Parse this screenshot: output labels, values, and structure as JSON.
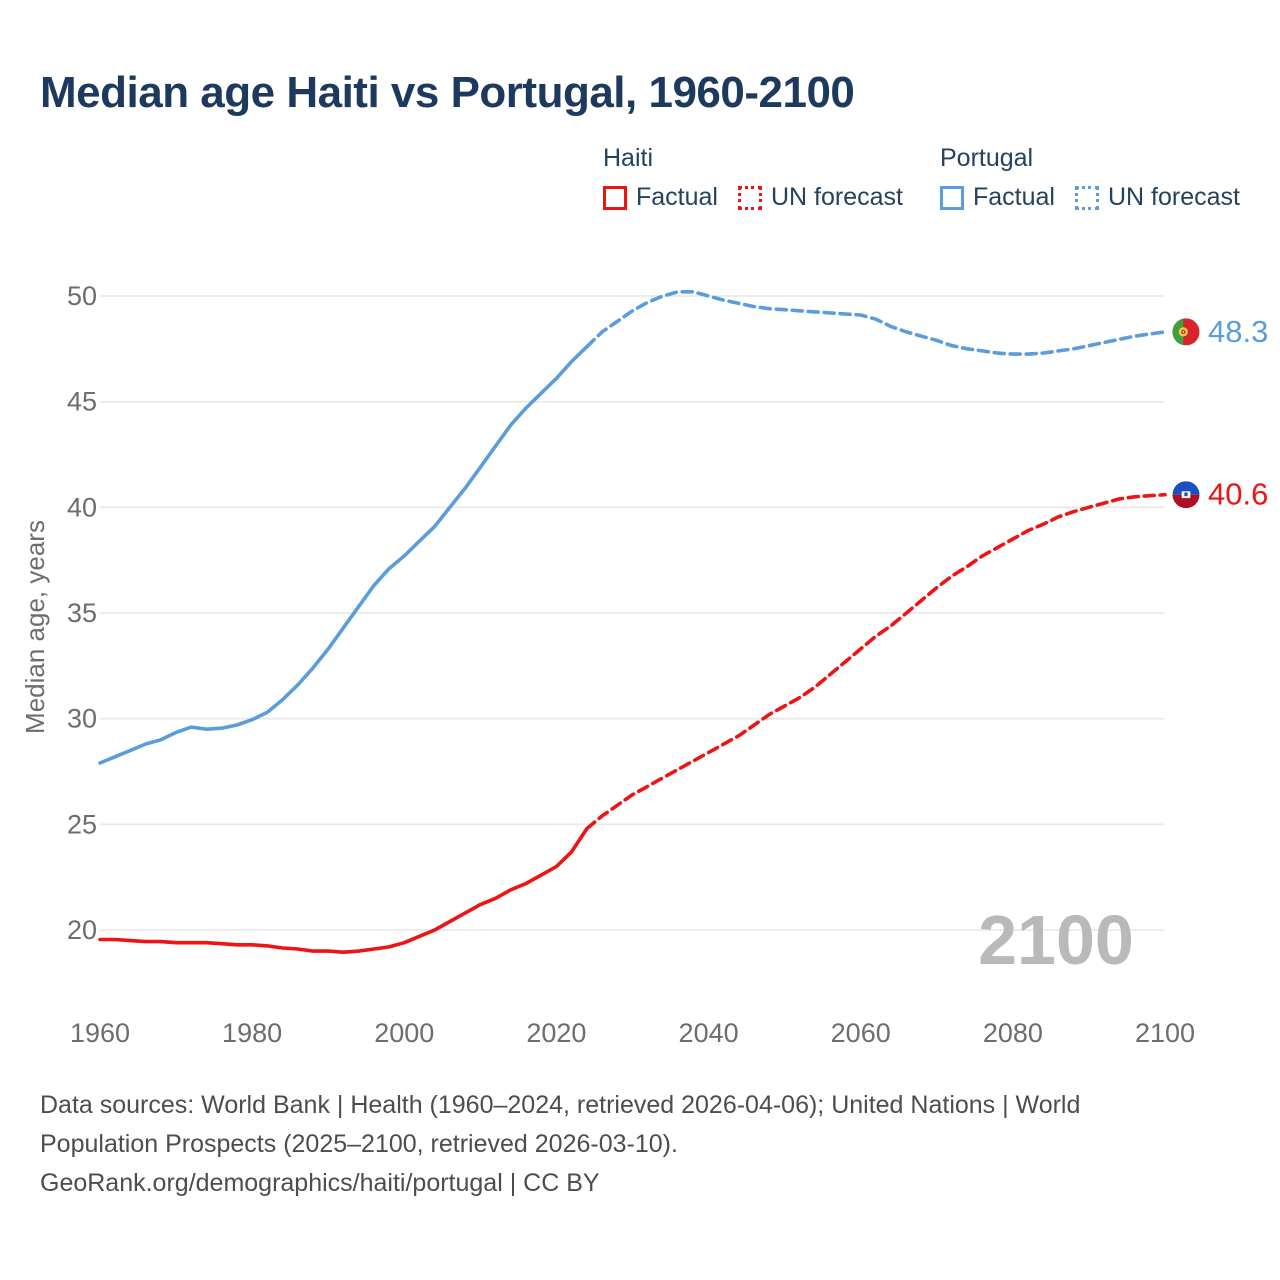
{
  "title": "Median age Haiti vs Portugal, 1960-2100",
  "legend": {
    "groups": [
      {
        "name": "Haiti",
        "items": [
          {
            "label": "Factual",
            "style": "solid",
            "color": "#ee1414"
          },
          {
            "label": "UN forecast",
            "style": "dotted",
            "color": "#ee1414"
          }
        ]
      },
      {
        "name": "Portugal",
        "items": [
          {
            "label": "Factual",
            "style": "solid",
            "color": "#5b9cdb"
          },
          {
            "label": "UN forecast",
            "style": "dotted",
            "color": "#5b9cdb"
          }
        ]
      }
    ]
  },
  "footer": {
    "line1": "Data sources: World Bank | Health (1960–2024, retrieved 2026-04-06); United Nations | World",
    "line2": "Population Prospects (2025–2100, retrieved 2026-03-10).",
    "line3": "GeoRank.org/demographics/haiti/portugal | CC BY"
  },
  "chart_data": {
    "type": "line",
    "title": "Median age Haiti vs Portugal, 1960-2100",
    "xlabel": "",
    "ylabel": "Median age, years",
    "xlim": [
      1960,
      2100
    ],
    "ylim": [
      17.5,
      52
    ],
    "x_ticks": [
      1960,
      1980,
      2000,
      2020,
      2040,
      2060,
      2080,
      2100
    ],
    "y_ticks": [
      20,
      25,
      30,
      35,
      40,
      45,
      50
    ],
    "grid": "horizontal-only",
    "watermark": "2100",
    "colors": {
      "haiti": "#ee1414",
      "portugal": "#5b9cdb",
      "grid": "#e7e7e7",
      "axis_text": "#6d6d6d",
      "watermark": "#b9b9b9"
    },
    "series": [
      {
        "name": "Portugal Factual",
        "color": "#5b9cdb",
        "dashed": false,
        "points": [
          [
            1960,
            27.9
          ],
          [
            1962,
            28.2
          ],
          [
            1964,
            28.5
          ],
          [
            1966,
            28.8
          ],
          [
            1968,
            29.0
          ],
          [
            1970,
            29.35
          ],
          [
            1972,
            29.6
          ],
          [
            1974,
            29.5
          ],
          [
            1976,
            29.55
          ],
          [
            1978,
            29.7
          ],
          [
            1980,
            29.95
          ],
          [
            1982,
            30.3
          ],
          [
            1984,
            30.9
          ],
          [
            1986,
            31.6
          ],
          [
            1988,
            32.4
          ],
          [
            1990,
            33.3
          ],
          [
            1992,
            34.3
          ],
          [
            1994,
            35.3
          ],
          [
            1996,
            36.3
          ],
          [
            1998,
            37.1
          ],
          [
            2000,
            37.7
          ],
          [
            2002,
            38.4
          ],
          [
            2004,
            39.1
          ],
          [
            2006,
            40.0
          ],
          [
            2008,
            40.9
          ],
          [
            2010,
            41.9
          ],
          [
            2012,
            42.9
          ],
          [
            2014,
            43.9
          ],
          [
            2016,
            44.7
          ],
          [
            2018,
            45.4
          ],
          [
            2020,
            46.1
          ],
          [
            2022,
            46.9
          ],
          [
            2024,
            47.6
          ]
        ]
      },
      {
        "name": "Portugal UN forecast",
        "color": "#5b9cdb",
        "dashed": true,
        "points": [
          [
            2024,
            47.6
          ],
          [
            2026,
            48.3
          ],
          [
            2028,
            48.8
          ],
          [
            2030,
            49.3
          ],
          [
            2032,
            49.7
          ],
          [
            2034,
            50.0
          ],
          [
            2036,
            50.2
          ],
          [
            2038,
            50.2
          ],
          [
            2040,
            50.0
          ],
          [
            2042,
            49.8
          ],
          [
            2044,
            49.65
          ],
          [
            2046,
            49.5
          ],
          [
            2048,
            49.4
          ],
          [
            2050,
            49.35
          ],
          [
            2052,
            49.3
          ],
          [
            2054,
            49.25
          ],
          [
            2056,
            49.2
          ],
          [
            2058,
            49.15
          ],
          [
            2060,
            49.1
          ],
          [
            2062,
            48.9
          ],
          [
            2064,
            48.55
          ],
          [
            2066,
            48.3
          ],
          [
            2068,
            48.1
          ],
          [
            2070,
            47.9
          ],
          [
            2072,
            47.65
          ],
          [
            2074,
            47.5
          ],
          [
            2076,
            47.4
          ],
          [
            2078,
            47.3
          ],
          [
            2080,
            47.25
          ],
          [
            2082,
            47.25
          ],
          [
            2084,
            47.3
          ],
          [
            2086,
            47.4
          ],
          [
            2088,
            47.5
          ],
          [
            2090,
            47.65
          ],
          [
            2092,
            47.8
          ],
          [
            2094,
            47.95
          ],
          [
            2096,
            48.1
          ],
          [
            2098,
            48.2
          ],
          [
            2100,
            48.3
          ]
        ]
      },
      {
        "name": "Haiti Factual",
        "color": "#ee1414",
        "dashed": false,
        "points": [
          [
            1960,
            19.55
          ],
          [
            1962,
            19.55
          ],
          [
            1964,
            19.5
          ],
          [
            1966,
            19.45
          ],
          [
            1968,
            19.45
          ],
          [
            1970,
            19.4
          ],
          [
            1972,
            19.4
          ],
          [
            1974,
            19.4
          ],
          [
            1976,
            19.35
          ],
          [
            1978,
            19.3
          ],
          [
            1980,
            19.3
          ],
          [
            1982,
            19.25
          ],
          [
            1984,
            19.15
          ],
          [
            1986,
            19.1
          ],
          [
            1988,
            19.0
          ],
          [
            1990,
            19.0
          ],
          [
            1992,
            18.95
          ],
          [
            1994,
            19.0
          ],
          [
            1996,
            19.1
          ],
          [
            1998,
            19.2
          ],
          [
            2000,
            19.4
          ],
          [
            2002,
            19.7
          ],
          [
            2004,
            20.0
          ],
          [
            2006,
            20.4
          ],
          [
            2008,
            20.8
          ],
          [
            2010,
            21.2
          ],
          [
            2012,
            21.5
          ],
          [
            2014,
            21.9
          ],
          [
            2016,
            22.2
          ],
          [
            2018,
            22.6
          ],
          [
            2020,
            23.0
          ],
          [
            2022,
            23.7
          ],
          [
            2024,
            24.8
          ]
        ]
      },
      {
        "name": "Haiti UN forecast",
        "color": "#ee1414",
        "dashed": true,
        "points": [
          [
            2024,
            24.8
          ],
          [
            2026,
            25.4
          ],
          [
            2028,
            25.9
          ],
          [
            2030,
            26.4
          ],
          [
            2032,
            26.8
          ],
          [
            2034,
            27.2
          ],
          [
            2036,
            27.6
          ],
          [
            2038,
            28.0
          ],
          [
            2040,
            28.4
          ],
          [
            2042,
            28.8
          ],
          [
            2044,
            29.2
          ],
          [
            2046,
            29.7
          ],
          [
            2048,
            30.2
          ],
          [
            2050,
            30.6
          ],
          [
            2052,
            31.0
          ],
          [
            2054,
            31.5
          ],
          [
            2056,
            32.1
          ],
          [
            2058,
            32.7
          ],
          [
            2060,
            33.3
          ],
          [
            2062,
            33.9
          ],
          [
            2064,
            34.4
          ],
          [
            2066,
            35.0
          ],
          [
            2068,
            35.6
          ],
          [
            2070,
            36.2
          ],
          [
            2072,
            36.75
          ],
          [
            2074,
            37.2
          ],
          [
            2076,
            37.7
          ],
          [
            2078,
            38.1
          ],
          [
            2080,
            38.5
          ],
          [
            2082,
            38.9
          ],
          [
            2084,
            39.2
          ],
          [
            2086,
            39.55
          ],
          [
            2088,
            39.8
          ],
          [
            2090,
            40.0
          ],
          [
            2092,
            40.2
          ],
          [
            2094,
            40.4
          ],
          [
            2096,
            40.5
          ],
          [
            2098,
            40.55
          ],
          [
            2100,
            40.6
          ]
        ]
      }
    ],
    "end_labels": [
      {
        "series_index": 1,
        "country": "Portugal",
        "value": "48.3",
        "color": "#5b9cdb",
        "flag": "portugal"
      },
      {
        "series_index": 3,
        "country": "Haiti",
        "value": "40.6",
        "color": "#ee1414",
        "flag": "haiti"
      }
    ]
  }
}
